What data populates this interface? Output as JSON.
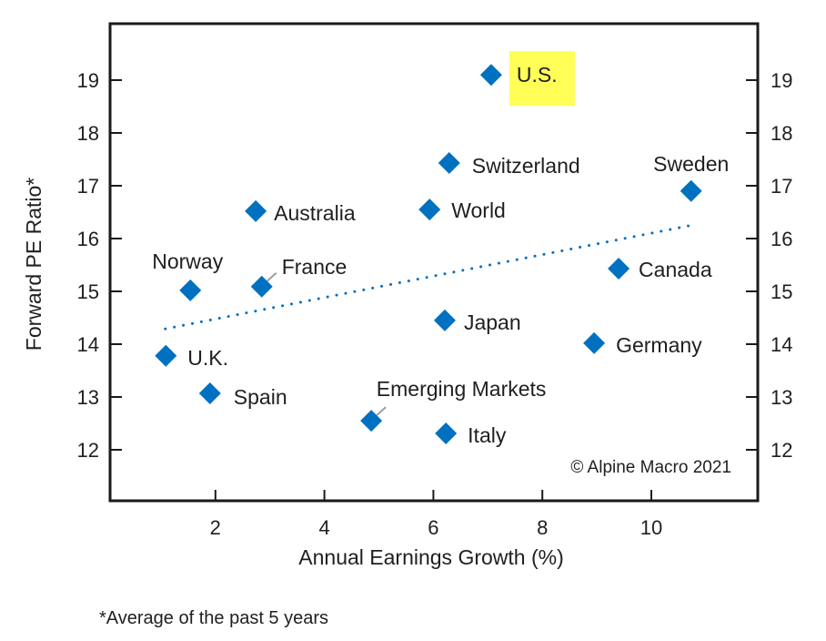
{
  "chart_data": {
    "type": "scatter",
    "title": "",
    "xlabel": "Annual Earnings Growth (%)",
    "ylabel": "Forward PE Ratio*",
    "xlim": [
      0,
      12
    ],
    "ylim": [
      11,
      20
    ],
    "x_ticks": [
      2,
      4,
      6,
      8,
      10
    ],
    "y_ticks": [
      12,
      13,
      14,
      15,
      16,
      17,
      18,
      19
    ],
    "y_axis_sides": [
      "left",
      "right"
    ],
    "grid": false,
    "marker": "diamond",
    "marker_color": "#0070C0",
    "points": [
      {
        "label": "U.S.",
        "x": 7.06,
        "y": 19.1,
        "highlight": true
      },
      {
        "label": "Switzerland",
        "x": 6.29,
        "y": 17.43
      },
      {
        "label": "Sweden",
        "x": 10.73,
        "y": 16.9
      },
      {
        "label": "Australia",
        "x": 2.74,
        "y": 16.52
      },
      {
        "label": "World",
        "x": 5.93,
        "y": 16.55
      },
      {
        "label": "Norway",
        "x": 1.54,
        "y": 15.02
      },
      {
        "label": "France",
        "x": 2.85,
        "y": 15.09
      },
      {
        "label": "Canada",
        "x": 9.4,
        "y": 15.43
      },
      {
        "label": "Japan",
        "x": 6.21,
        "y": 14.45
      },
      {
        "label": "Germany",
        "x": 8.95,
        "y": 14.02
      },
      {
        "label": "U.K.",
        "x": 1.09,
        "y": 13.78
      },
      {
        "label": "Spain",
        "x": 1.9,
        "y": 13.07
      },
      {
        "label": "Emerging Markets",
        "x": 4.86,
        "y": 12.55
      },
      {
        "label": "Italy",
        "x": 6.23,
        "y": 12.31
      }
    ],
    "trendline": {
      "style": "dotted",
      "color": "#0070C0",
      "start": {
        "x": 1.08,
        "y": 14.29
      },
      "end": {
        "x": 10.78,
        "y": 16.26
      }
    },
    "highlight_color": "#FFFF57",
    "annotation": "© Alpine Macro 2021"
  },
  "footnote": "*Average of the past 5 years"
}
